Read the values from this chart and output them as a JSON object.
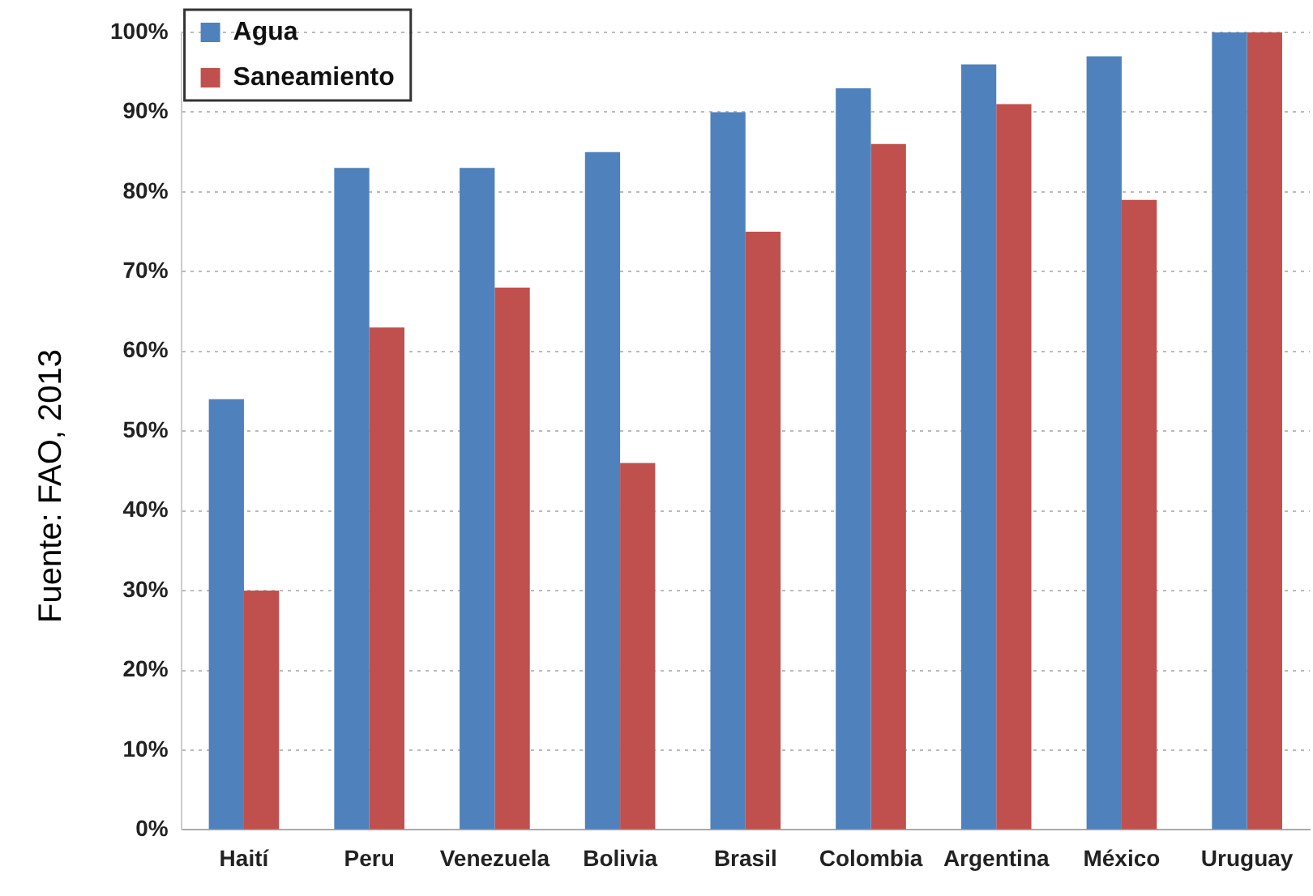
{
  "chart_data": {
    "type": "bar",
    "categories": [
      "Haití",
      "Peru",
      "Venezuela",
      "Bolivia",
      "Brasil",
      "Colombia",
      "Argentina",
      "México",
      "Uruguay"
    ],
    "series": [
      {
        "name": "Agua",
        "color": "#4f81bd",
        "values": [
          54,
          83,
          83,
          85,
          90,
          93,
          96,
          97,
          100
        ]
      },
      {
        "name": "Saneamiento",
        "color": "#c0504d",
        "values": [
          30,
          63,
          68,
          46,
          75,
          86,
          91,
          79,
          100
        ]
      }
    ],
    "ylim": [
      0,
      100
    ],
    "yticks": [
      {
        "value": 0,
        "label": "0%"
      },
      {
        "value": 10,
        "label": "10%"
      },
      {
        "value": 20,
        "label": "20%"
      },
      {
        "value": 30,
        "label": "30%"
      },
      {
        "value": 40,
        "label": "40%"
      },
      {
        "value": 50,
        "label": "50%"
      },
      {
        "value": 60,
        "label": "60%"
      },
      {
        "value": 70,
        "label": "70%"
      },
      {
        "value": 80,
        "label": "80%"
      },
      {
        "value": 90,
        "label": "90%"
      },
      {
        "value": 100,
        "label": "100%"
      }
    ],
    "grid": "y",
    "legend": "top left",
    "annotations": [
      "Fuente: FAO, 2013"
    ]
  }
}
